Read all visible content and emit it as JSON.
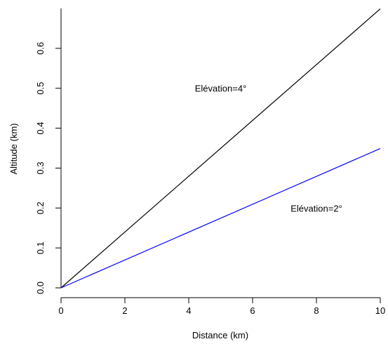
{
  "chart_data": {
    "type": "line",
    "title": "",
    "xlabel": "Distance (km)",
    "ylabel": "Altitude (km)",
    "xlim": [
      0,
      10
    ],
    "ylim": [
      0,
      0.7
    ],
    "x_ticks": [
      0,
      2,
      4,
      6,
      8,
      10
    ],
    "y_ticks": [
      0.0,
      0.1,
      0.2,
      0.3,
      0.4,
      0.5,
      0.6
    ],
    "x_tick_labels": [
      "0",
      "2",
      "4",
      "6",
      "8",
      "10"
    ],
    "y_tick_labels": [
      "0.0",
      "0.1",
      "0.2",
      "0.3",
      "0.4",
      "0.5",
      "0.6"
    ],
    "grid": false,
    "series": [
      {
        "x": [
          0,
          10
        ],
        "y": [
          0,
          0.699
        ],
        "color": "#000000"
      },
      {
        "x": [
          0,
          10
        ],
        "y": [
          0,
          0.349
        ],
        "color": "#0000ff"
      }
    ],
    "annotations": [
      {
        "text": "Elévation=4°",
        "x": 5.0,
        "y": 0.5,
        "color": "#000000"
      },
      {
        "text": "Elévation=2°",
        "x": 8.0,
        "y": 0.2,
        "color": "#0000ff"
      }
    ]
  }
}
